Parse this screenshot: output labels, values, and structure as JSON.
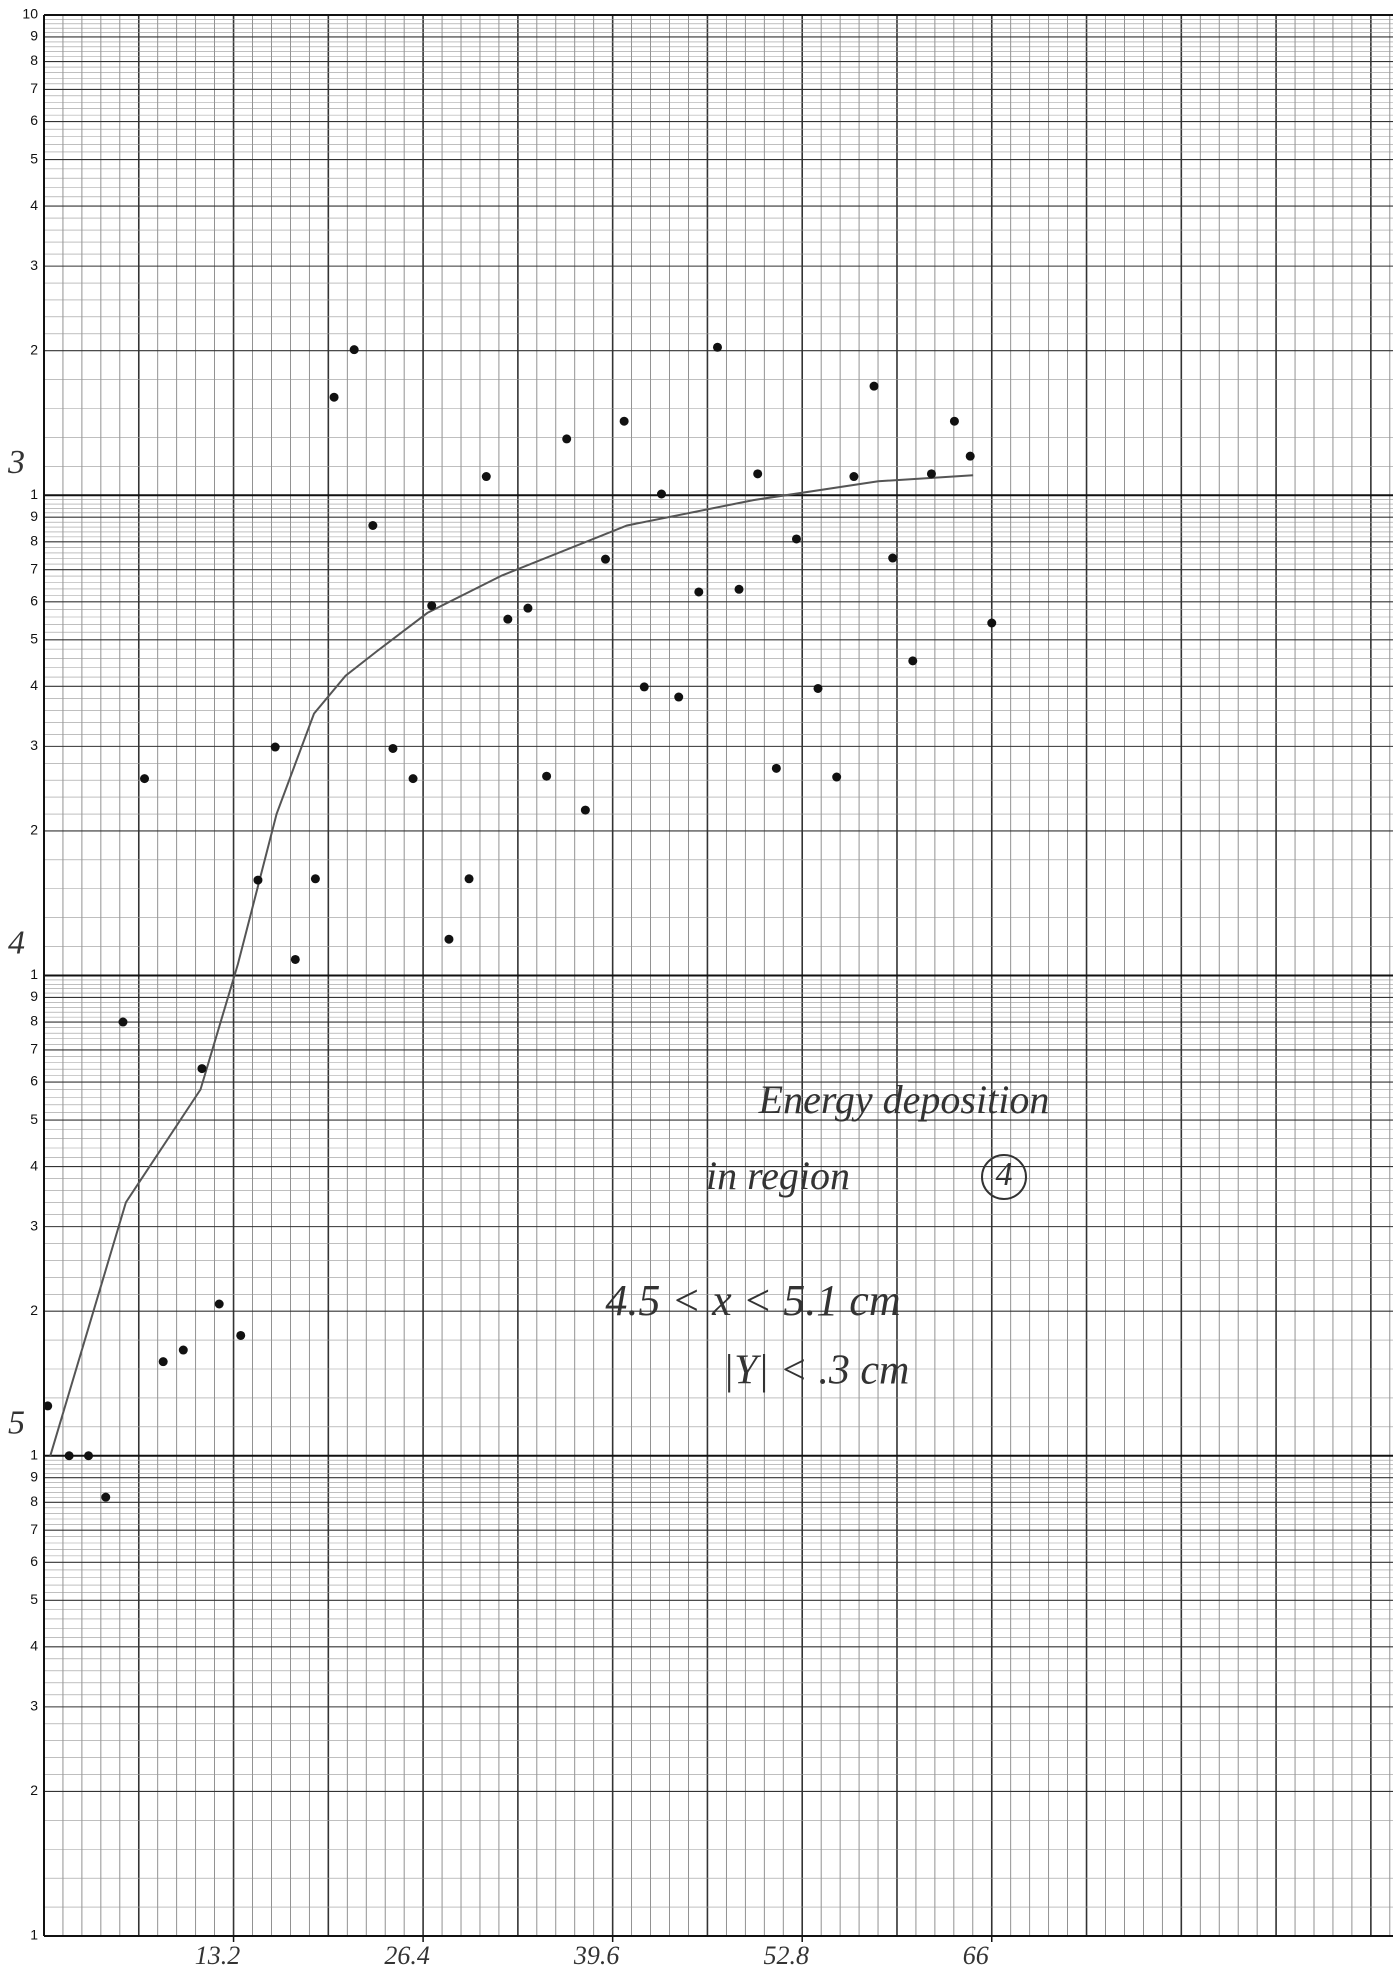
{
  "chart_data": {
    "type": "scatter",
    "log_y": true,
    "grid": true,
    "color": "#111111",
    "curve_color": "#555555",
    "xlim": [
      0,
      93
    ],
    "ylim": [
      1,
      10000
    ],
    "xticks": [
      13.2,
      26.4,
      39.6,
      52.8,
      66
    ],
    "yticks": [
      1,
      2,
      3,
      4,
      5,
      6,
      7,
      8,
      9,
      {
        "value": 10,
        "label": "1"
      },
      {
        "value": 20,
        "label": "2"
      },
      {
        "value": 30,
        "label": "3"
      },
      {
        "value": 40,
        "label": "4"
      },
      {
        "value": 50,
        "label": "5"
      },
      {
        "value": 60,
        "label": "6"
      },
      {
        "value": 70,
        "label": "7"
      },
      {
        "value": 80,
        "label": "8"
      },
      {
        "value": 90,
        "label": "9"
      },
      {
        "value": 100,
        "label": "1"
      },
      {
        "value": 200,
        "label": "2"
      },
      {
        "value": 300,
        "label": "3"
      },
      {
        "value": 400,
        "label": "4"
      },
      {
        "value": 500,
        "label": "5"
      },
      {
        "value": 600,
        "label": "6"
      },
      {
        "value": 700,
        "label": "7"
      },
      {
        "value": 800,
        "label": "8"
      },
      {
        "value": 900,
        "label": "9"
      },
      {
        "value": 1000,
        "label": "1"
      },
      {
        "value": 2000,
        "label": "2"
      },
      {
        "value": 3000,
        "label": "3"
      },
      {
        "value": 4000,
        "label": "4"
      },
      {
        "value": 5000,
        "label": "5"
      },
      {
        "value": 6000,
        "label": "6"
      },
      {
        "value": 7000,
        "label": "7"
      },
      {
        "value": 8000,
        "label": "8"
      },
      {
        "value": 9000,
        "label": "9"
      },
      {
        "value": 10000,
        "label": "10"
      }
    ],
    "side_labels": [
      "3",
      "4",
      "5"
    ],
    "annotations": [
      "Energy deposition",
      "in region",
      "4",
      "4.5 < x < 5.1 cm",
      "|Y| < .3 cm"
    ],
    "x": [
      0.26,
      1.75,
      3.1,
      4.3,
      5.5,
      7.0,
      8.3,
      9.7,
      11.0,
      12.2,
      13.7,
      14.9,
      16.1,
      17.5,
      18.9,
      20.2,
      21.6,
      22.9,
      24.3,
      25.7,
      27.0,
      28.2,
      29.6,
      30.8,
      32.3,
      33.7,
      35.0,
      36.4,
      37.7,
      39.1,
      40.4,
      41.8,
      43.0,
      44.2,
      45.6,
      46.9,
      48.4,
      49.7,
      51.0,
      52.4,
      53.9,
      55.2,
      56.4,
      57.8,
      59.1,
      60.5,
      61.8,
      63.4,
      64.5,
      66.0
    ],
    "values": [
      12.7,
      10,
      10,
      8.2,
      80,
      257,
      15.7,
      16.6,
      64,
      20.7,
      17.8,
      158,
      299,
      108,
      159,
      1600,
      2010,
      865,
      297,
      257,
      589,
      119,
      159,
      1094,
      552,
      582,
      260,
      1310,
      221,
      736,
      1426,
      399,
      1006,
      380,
      629,
      2033,
      637,
      1108,
      270,
      811,
      396,
      259,
      1094,
      1687,
      740,
      452,
      1108,
      1426,
      1206,
      542
    ],
    "fit": {
      "x": [
        0.44,
        5.7,
        10.9,
        13.5,
        16.2,
        18.8,
        21.0,
        23.2,
        26.7,
        31.9,
        40.6,
        49.4,
        58.1,
        64.7
      ],
      "y": [
        10,
        33.7,
        57.9,
        105.6,
        217,
        351,
        421,
        474,
        569,
        681,
        865,
        977,
        1069,
        1101
      ]
    }
  }
}
